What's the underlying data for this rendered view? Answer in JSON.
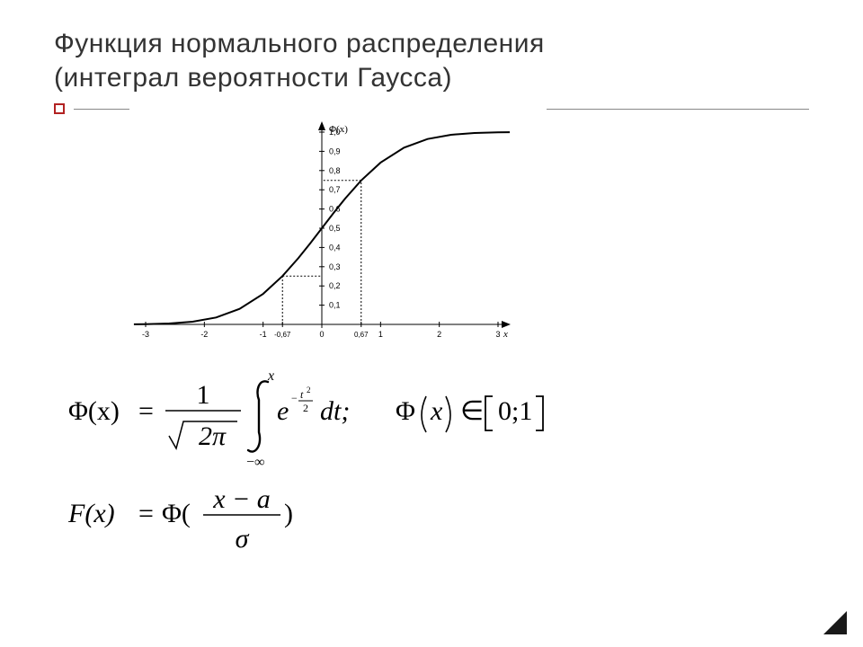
{
  "title": {
    "line1": "Функция нормального распределения",
    "line2": "(интеграл вероятности Гаусса)",
    "font_size": 30,
    "color": "#333333"
  },
  "divider": {
    "bullet_color": "#B22222",
    "line_color": "#888888"
  },
  "chart": {
    "type": "line",
    "background_color": "#ffffff",
    "axis_color": "#000000",
    "curve_color": "#000000",
    "grid_color": "#000000",
    "title_label": "Φ(x)",
    "xlabel": "x",
    "xlim": [
      -3,
      3
    ],
    "ylim": [
      0,
      1
    ],
    "x_ticks": [
      {
        "pos": -3,
        "label": "-3"
      },
      {
        "pos": -2,
        "label": "-2"
      },
      {
        "pos": -1,
        "label": "-1"
      },
      {
        "pos": -0.67,
        "label": "-0,67"
      },
      {
        "pos": 0,
        "label": "0"
      },
      {
        "pos": 0.67,
        "label": "0,67"
      },
      {
        "pos": 1,
        "label": "1"
      },
      {
        "pos": 2,
        "label": "2"
      },
      {
        "pos": 3,
        "label": "3"
      }
    ],
    "y_ticks": [
      {
        "pos": 0.1,
        "label": "0,1"
      },
      {
        "pos": 0.2,
        "label": "0,2"
      },
      {
        "pos": 0.3,
        "label": "0,3"
      },
      {
        "pos": 0.4,
        "label": "0,4"
      },
      {
        "pos": 0.5,
        "label": "0,5"
      },
      {
        "pos": 0.6,
        "label": "0,6"
      },
      {
        "pos": 0.7,
        "label": "0,7"
      },
      {
        "pos": 0.8,
        "label": "0,8"
      },
      {
        "pos": 0.9,
        "label": "0,9"
      },
      {
        "pos": 1.0,
        "label": "1,0"
      }
    ],
    "curve": [
      {
        "x": -3.2,
        "y": 0.0007
      },
      {
        "x": -3.0,
        "y": 0.0013
      },
      {
        "x": -2.6,
        "y": 0.0047
      },
      {
        "x": -2.2,
        "y": 0.0139
      },
      {
        "x": -1.8,
        "y": 0.0359
      },
      {
        "x": -1.4,
        "y": 0.0808
      },
      {
        "x": -1.0,
        "y": 0.1587
      },
      {
        "x": -0.67,
        "y": 0.2514
      },
      {
        "x": -0.4,
        "y": 0.3446
      },
      {
        "x": -0.2,
        "y": 0.4207
      },
      {
        "x": 0.0,
        "y": 0.5
      },
      {
        "x": 0.2,
        "y": 0.5793
      },
      {
        "x": 0.4,
        "y": 0.6554
      },
      {
        "x": 0.67,
        "y": 0.7486
      },
      {
        "x": 1.0,
        "y": 0.8413
      },
      {
        "x": 1.4,
        "y": 0.9192
      },
      {
        "x": 1.8,
        "y": 0.9641
      },
      {
        "x": 2.2,
        "y": 0.9861
      },
      {
        "x": 2.6,
        "y": 0.9953
      },
      {
        "x": 3.0,
        "y": 0.9987
      },
      {
        "x": 3.2,
        "y": 0.9993
      }
    ],
    "guides": [
      {
        "from_x": -0.67,
        "from_y": 0,
        "to_x": -0.67,
        "to_y": 0.2514,
        "then_x": 0
      },
      {
        "from_x": 0.67,
        "from_y": 0,
        "to_x": 0.67,
        "to_y": 0.7486,
        "then_x": 0
      }
    ],
    "tick_fontsize": 9,
    "line_width": 2,
    "tick_line_width": 1
  },
  "formula1": {
    "lhs": "Φ(x)",
    "eq": "=",
    "frac_num": "1",
    "frac_den_sqrt": "2π",
    "int_lower": "−∞",
    "int_upper": "x",
    "integrand_base": "e",
    "exponent_neg": "−",
    "exponent_num": "t",
    "exponent_sq": "2",
    "exponent_den": "2",
    "dt": "dt;",
    "range_lhs": "Φ",
    "range_arg": "x",
    "in": "∈",
    "range_open": "[",
    "range_vals": "0;1",
    "range_close": "]",
    "font_size_main": 30,
    "font_size_script": 16,
    "font_size_scriptscript": 12
  },
  "formula2": {
    "lhs": "F(x)",
    "eq": "=",
    "phi": "Φ(",
    "frac_num": "x − a",
    "frac_den": "σ",
    "close": ")",
    "font_size_main": 30
  }
}
